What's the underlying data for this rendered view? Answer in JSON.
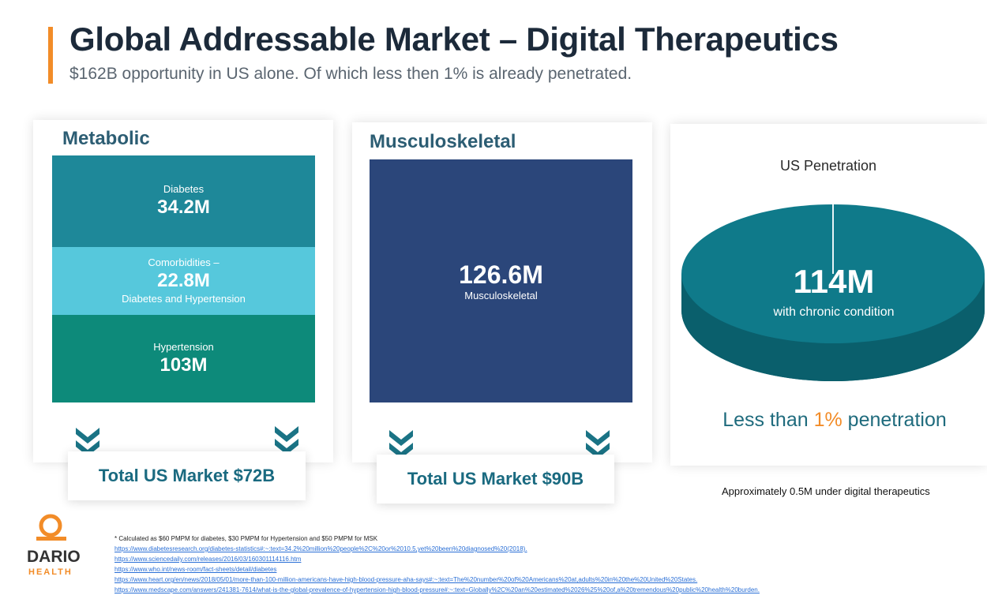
{
  "header": {
    "title": "Global Addressable Market – Digital Therapeutics",
    "subtitle": "$162B opportunity in US alone. Of which less then 1% is already penetrated."
  },
  "metabolic": {
    "heading": "Metabolic",
    "blocks": [
      {
        "label": "Diabetes",
        "value": "34.2M",
        "sublabel": "",
        "color": "#1e8899"
      },
      {
        "label": "Comorbidities –",
        "value": "22.8M",
        "sublabel": "Diabetes and Hypertension",
        "color": "#56c8dc"
      },
      {
        "label": "Hypertension",
        "value": "103M",
        "sublabel": "",
        "color": "#0d8a7a"
      }
    ],
    "total": "Total US Market $72B"
  },
  "musculoskeletal": {
    "heading": "Musculoskeletal",
    "value": "126.6M",
    "label": "Musculoskeletal",
    "color": "#2b467a",
    "total": "Total US Market $90B"
  },
  "penetration": {
    "title": "US Penetration",
    "value": "114M",
    "label": "with chronic condition",
    "line_prefix": "Less than ",
    "line_highlight": "1%",
    "line_suffix": " penetration",
    "footnote": "Approximately 0.5M under digital therapeutics",
    "colors": {
      "top": "#0f7a8a",
      "side": "#0a5f6c"
    }
  },
  "logo": {
    "name": "DARIO",
    "subname": "HEALTH"
  },
  "footnotes": {
    "note": "* Calculated as $60 PMPM for diabetes, $30 PMPM for Hypertension and $50 PMPM for MSK",
    "refs": [
      "https://www.diabetesresearch.org/diabetes-statistics#:~:text=34.2%20million%20people%2C%20or%2010.5,yet%20been%20diagnosed%20(2018).",
      "https://www.sciencedaily.com/releases/2016/03/160301114116.htm",
      "https://www.who.int/news-room/fact-sheets/detail/diabetes",
      "https://www.heart.org/en/news/2018/05/01/more-than-100-million-americans-have-high-blood-pressure-aha-says#:~:text=The%20number%20of%20Americans%20at,adults%20in%20the%20United%20States.",
      "https://www.medscape.com/answers/241381-7614/what-is-the-global-prevalence-of-hypertension-high-blood-pressure#:~:text=Globally%2C%20an%20estimated%2026%25%20of,a%20tremendous%20public%20health%20burden."
    ]
  }
}
